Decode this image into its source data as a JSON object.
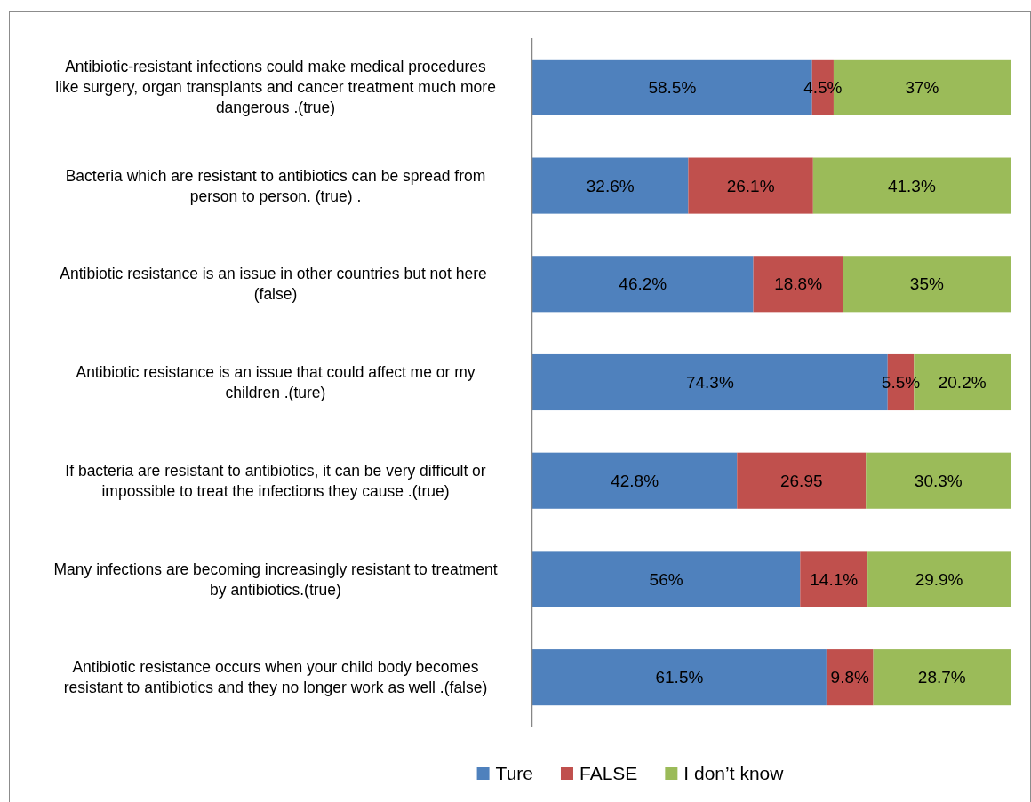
{
  "chart_data": {
    "type": "bar",
    "orientation": "horizontal",
    "stacked": true,
    "legend": "bottom",
    "categories": [
      "Antibiotic-resistant infections could make medical procedures like surgery, organ transplants and cancer treatment much more dangerous .(true)",
      "Bacteria which are resistant to antibiotics can be spread from person to person. (true) .",
      "Antibiotic resistance is an issue in other countries but not here  (false)",
      "Antibiotic resistance is an issue that could affect me or my children  .(ture)",
      "If bacteria are resistant to antibiotics, it can be very difficult or impossible to treat the infections they cause .(true)",
      "Many infections are becoming increasingly resistant to treatment by antibiotics.(true)",
      "Antibiotic resistance occurs when your child body becomes resistant to antibiotics and they no longer work as well .(false)"
    ],
    "xlim": [
      0,
      100
    ],
    "series": [
      {
        "name": "Ture",
        "color": "#4f81bd",
        "values": [
          58.5,
          32.6,
          46.2,
          74.3,
          42.8,
          56,
          61.5
        ],
        "value_labels": [
          "58.5%",
          "32.6%",
          "46.2%",
          "74.3%",
          "42.8%",
          "56%",
          "61.5%"
        ]
      },
      {
        "name": "FALSE",
        "color": "#c0504d",
        "values": [
          4.5,
          26.1,
          18.8,
          5.5,
          26.95,
          14.1,
          9.8
        ],
        "value_labels": [
          "4.5%",
          "26.1%",
          "18.8%",
          "5.5%",
          "26.95",
          "14.1%",
          "9.8%"
        ]
      },
      {
        "name": "I don’t know",
        "color": "#9bbb59",
        "values": [
          37,
          41.3,
          35,
          20.2,
          30.3,
          29.9,
          28.7
        ],
        "value_labels": [
          "37%",
          "41.3%",
          "35%",
          "20.2%",
          "30.3%",
          "29.9%",
          "28.7%"
        ]
      }
    ]
  }
}
